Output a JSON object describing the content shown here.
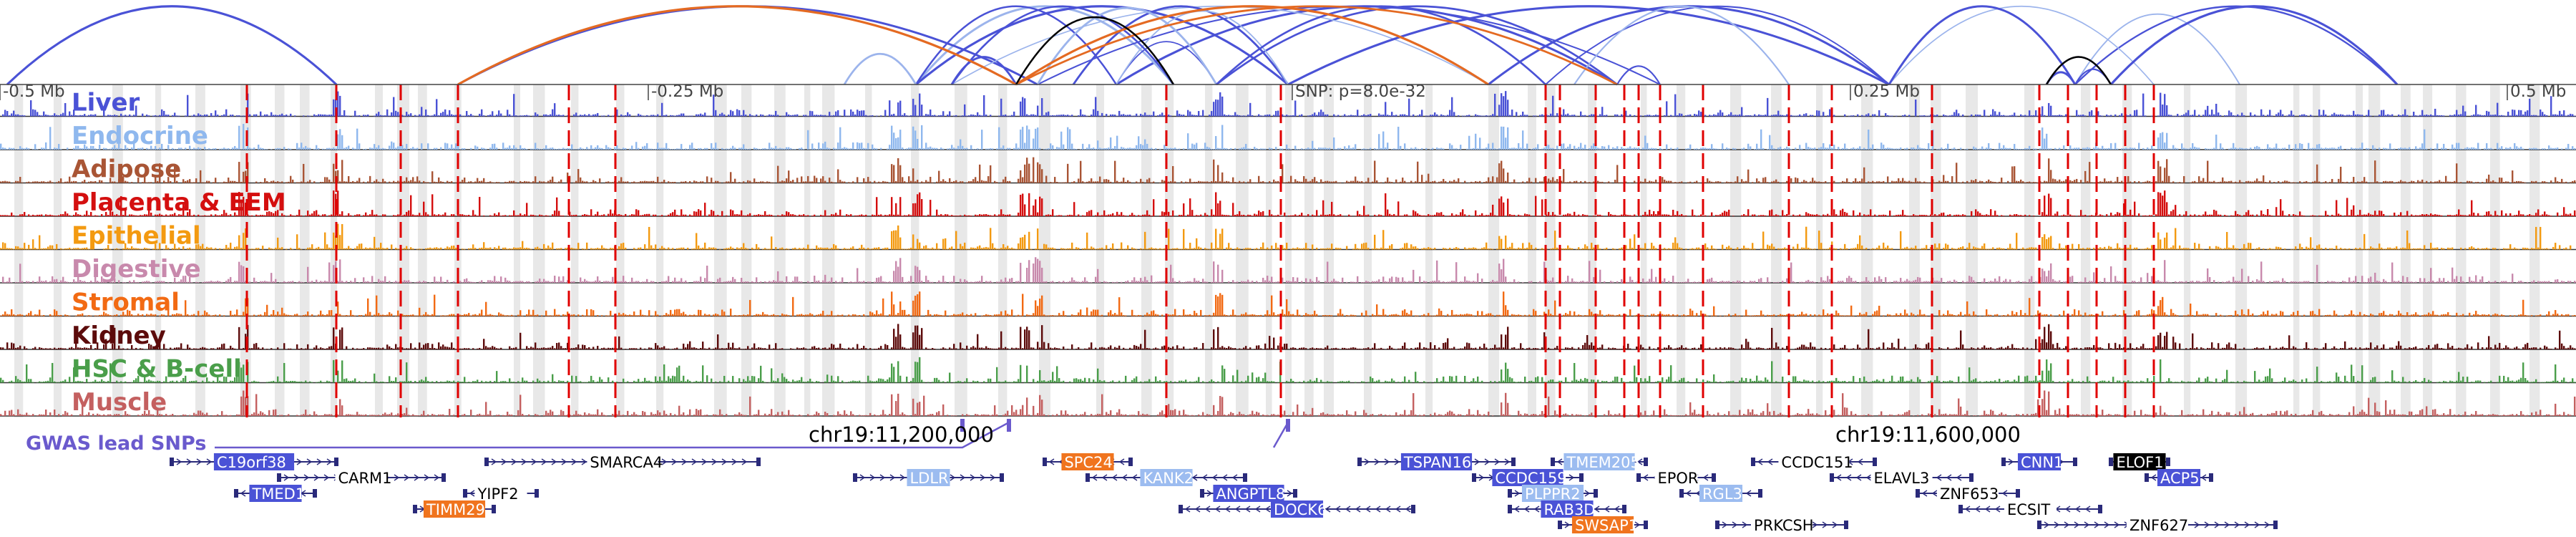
{
  "tracks": [
    {
      "label": "Liver",
      "color": "#4a52d6"
    },
    {
      "label": "Endocrine",
      "color": "#8fb8ee"
    },
    {
      "label": "Adipose",
      "color": "#a95535"
    },
    {
      "label": "Placenta & EEM",
      "color": "#d40f0f"
    },
    {
      "label": "Epithelial",
      "color": "#f39a11"
    },
    {
      "label": "Digestive",
      "color": "#c889ac"
    },
    {
      "label": "Stromal",
      "color": "#f26a13"
    },
    {
      "label": "Kidney",
      "color": "#5c0b0b"
    },
    {
      "label": "HSC & B-cell",
      "color": "#4a9e4a"
    },
    {
      "label": "Muscle",
      "color": "#c46060"
    }
  ],
  "scale": {
    "ticks": [
      "-0.5 Mb",
      "-0.25 Mb",
      "SNP: p=8.0e-32",
      "0.25 Mb",
      "0.5 Mb"
    ],
    "chr_labels": [
      "chr19:11,200,000",
      "chr19:11,600,000"
    ]
  },
  "gwas_label": "GWAS lead SNPs",
  "colors": {
    "loop_blue": "#4a52d6",
    "loop_light": "#9cb4ec",
    "loop_orange": "#e46a22",
    "loop_black": "#000000",
    "snp_red": "#e00000",
    "gene_line": "#2a2a7a",
    "gwas": "#6a5acd"
  },
  "genes": [
    {
      "name": "C19orf38",
      "style": "blue",
      "row": 0,
      "strand": "+"
    },
    {
      "name": "SMARCA4",
      "style": "plain",
      "row": 0,
      "strand": "+"
    },
    {
      "name": "SPC24",
      "style": "orange",
      "row": 0,
      "strand": "-"
    },
    {
      "name": "TSPAN16",
      "style": "blue",
      "row": 0,
      "strand": "+"
    },
    {
      "name": "TMEM205",
      "style": "light",
      "row": 0,
      "strand": "-"
    },
    {
      "name": "CCDC151",
      "style": "plain",
      "row": 0,
      "strand": "-"
    },
    {
      "name": "CNN1",
      "style": "blue",
      "row": 0,
      "strand": "+"
    },
    {
      "name": "ELOF1",
      "style": "black",
      "row": 0,
      "strand": "-"
    },
    {
      "name": "CARM1",
      "style": "plain",
      "row": 1,
      "strand": "+"
    },
    {
      "name": "LDLR",
      "style": "light",
      "row": 1,
      "strand": "+"
    },
    {
      "name": "KANK2",
      "style": "light",
      "row": 1,
      "strand": "-"
    },
    {
      "name": "CCDC159",
      "style": "blue",
      "row": 1,
      "strand": "+"
    },
    {
      "name": "EPOR",
      "style": "plain",
      "row": 1,
      "strand": "-"
    },
    {
      "name": "ELAVL3",
      "style": "plain",
      "row": 1,
      "strand": "-"
    },
    {
      "name": "ACP5",
      "style": "blue",
      "row": 1,
      "strand": "-"
    },
    {
      "name": "TMED1",
      "style": "blue",
      "row": 2,
      "strand": "-"
    },
    {
      "name": "YIPF2",
      "style": "plain",
      "row": 2,
      "strand": "-"
    },
    {
      "name": "ANGPTL8",
      "style": "blue",
      "row": 2,
      "strand": "+"
    },
    {
      "name": "PLPPR2",
      "style": "light",
      "row": 2,
      "strand": "+"
    },
    {
      "name": "RGL3",
      "style": "light",
      "row": 2,
      "strand": "-"
    },
    {
      "name": "ZNF653",
      "style": "plain",
      "row": 2,
      "strand": "-"
    },
    {
      "name": "TIMM29",
      "style": "orange",
      "row": 3,
      "strand": "+"
    },
    {
      "name": "DOCK6",
      "style": "blue",
      "row": 3,
      "strand": "-"
    },
    {
      "name": "RAB3D",
      "style": "blue",
      "row": 3,
      "strand": "-"
    },
    {
      "name": "ECSIT",
      "style": "plain",
      "row": 3,
      "strand": "-"
    },
    {
      "name": "SWSAP1",
      "style": "orange",
      "row": 4,
      "strand": "+"
    },
    {
      "name": "PRKCSH",
      "style": "plain",
      "row": 4,
      "strand": "+"
    },
    {
      "name": "ZNF627",
      "style": "plain",
      "row": 4,
      "strand": "+"
    }
  ]
}
